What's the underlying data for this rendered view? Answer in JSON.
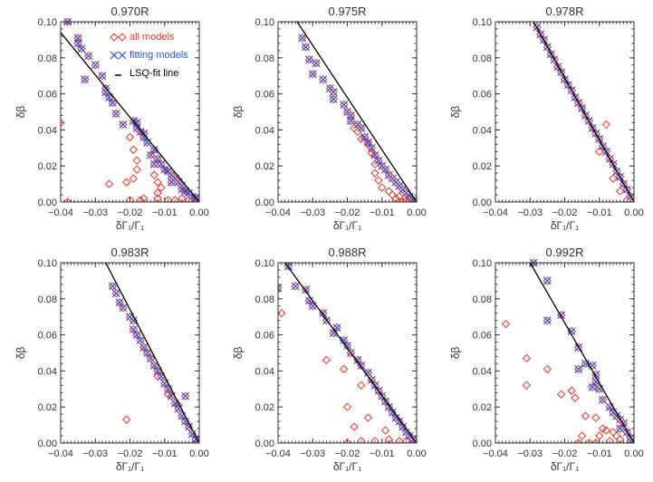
{
  "colors": {
    "all_models": "#ee3322",
    "fitting_models": "#2255ee",
    "fit_line": "#000000"
  },
  "legend": {
    "all_models": "all models",
    "fitting_models": "fitting models",
    "fit_line": "LSQ-fit line",
    "placement": "top-right of first panel"
  },
  "chart_data": [
    {
      "type": "scatter",
      "title": "0.970R",
      "xlabel": "δΓ₁/Γ₁",
      "ylabel": "δβ",
      "xlim": [
        -0.04,
        0
      ],
      "ylim": [
        0,
        0.1
      ],
      "xticks": [
        "−0.04",
        "−0.03",
        "−0.02",
        "−0.01",
        "0.00"
      ],
      "yticks": [
        "0.00",
        "0.02",
        "0.04",
        "0.06",
        "0.08",
        "0.10"
      ],
      "fit_line": [
        [
          -0.04,
          0.094
        ],
        [
          0,
          0
        ]
      ],
      "fitting": [
        [
          -0.038,
          0.1
        ],
        [
          -0.035,
          0.091
        ],
        [
          -0.035,
          0.088
        ],
        [
          -0.034,
          0.085
        ],
        [
          -0.032,
          0.081
        ],
        [
          -0.033,
          0.068
        ],
        [
          -0.03,
          0.076
        ],
        [
          -0.028,
          0.07
        ],
        [
          -0.027,
          0.063
        ],
        [
          -0.027,
          0.061
        ],
        [
          -0.026,
          0.058
        ],
        [
          -0.025,
          0.055
        ],
        [
          -0.024,
          0.049
        ],
        [
          -0.022,
          0.043
        ],
        [
          -0.019,
          0.045
        ],
        [
          -0.018,
          0.044
        ],
        [
          -0.018,
          0.041
        ],
        [
          -0.017,
          0.039
        ],
        [
          -0.016,
          0.038
        ],
        [
          -0.016,
          0.036
        ],
        [
          -0.015,
          0.033
        ],
        [
          -0.013,
          0.029
        ],
        [
          -0.014,
          0.026
        ],
        [
          -0.012,
          0.024
        ],
        [
          -0.013,
          0.021
        ],
        [
          -0.011,
          0.021
        ],
        [
          -0.01,
          0.018
        ],
        [
          -0.009,
          0.017
        ],
        [
          -0.008,
          0.015
        ],
        [
          -0.007,
          0.013
        ],
        [
          -0.008,
          0.011
        ],
        [
          -0.006,
          0.011
        ],
        [
          -0.005,
          0.009
        ],
        [
          -0.005,
          0.007
        ],
        [
          -0.004,
          0.006
        ],
        [
          -0.003,
          0.005
        ],
        [
          -0.002,
          0.003
        ],
        [
          -0.001,
          0.002
        ]
      ],
      "others": [
        [
          -0.04,
          0.044
        ],
        [
          -0.026,
          0.01
        ],
        [
          -0.021,
          0.011
        ],
        [
          -0.02,
          0.036
        ],
        [
          -0.019,
          0.029
        ],
        [
          -0.018,
          0.023
        ],
        [
          -0.018,
          0.018
        ],
        [
          -0.019,
          0.013
        ],
        [
          -0.013,
          0.015
        ],
        [
          -0.012,
          0.011
        ],
        [
          -0.011,
          0.008
        ],
        [
          -0.012,
          0.005
        ],
        [
          -0.02,
          0.001
        ],
        [
          -0.017,
          0.001
        ],
        [
          -0.016,
          0.002
        ],
        [
          -0.012,
          0.002
        ],
        [
          -0.009,
          0.001
        ],
        [
          -0.007,
          0.001
        ],
        [
          -0.005,
          0.002
        ],
        [
          -0.003,
          0.001
        ],
        [
          -0.001,
          0.001
        ],
        [
          -0.038,
          0.0
        ]
      ]
    },
    {
      "type": "scatter",
      "title": "0.975R",
      "xlabel": "δΓ₁/Γ₁",
      "ylabel": "δβ",
      "xlim": [
        -0.04,
        0
      ],
      "ylim": [
        0,
        0.1
      ],
      "xticks": [
        "−0.04",
        "−0.03",
        "−0.02",
        "−0.01",
        "0.00"
      ],
      "yticks": [
        "0.00",
        "0.02",
        "0.04",
        "0.06",
        "0.08",
        "0.10"
      ],
      "fit_line": [
        [
          -0.0345,
          0.1
        ],
        [
          0,
          0
        ]
      ],
      "fitting": [
        [
          -0.033,
          0.091
        ],
        [
          -0.032,
          0.086
        ],
        [
          -0.031,
          0.079
        ],
        [
          -0.029,
          0.077
        ],
        [
          -0.03,
          0.071
        ],
        [
          -0.027,
          0.068
        ],
        [
          -0.025,
          0.063
        ],
        [
          -0.024,
          0.061
        ],
        [
          -0.024,
          0.057
        ],
        [
          -0.021,
          0.054
        ],
        [
          -0.02,
          0.05
        ],
        [
          -0.019,
          0.048
        ],
        [
          -0.019,
          0.045
        ],
        [
          -0.017,
          0.043
        ],
        [
          -0.016,
          0.041
        ],
        [
          -0.015,
          0.036
        ],
        [
          -0.014,
          0.033
        ],
        [
          -0.013,
          0.03
        ],
        [
          -0.012,
          0.026
        ],
        [
          -0.011,
          0.023
        ],
        [
          -0.01,
          0.02
        ],
        [
          -0.009,
          0.018
        ],
        [
          -0.008,
          0.015
        ],
        [
          -0.007,
          0.013
        ],
        [
          -0.006,
          0.011
        ],
        [
          -0.005,
          0.009
        ],
        [
          -0.004,
          0.007
        ],
        [
          -0.003,
          0.005
        ],
        [
          -0.002,
          0.003
        ],
        [
          -0.001,
          0.001
        ]
      ],
      "others": [
        [
          -0.018,
          0.041
        ],
        [
          -0.017,
          0.039
        ],
        [
          -0.016,
          0.035
        ],
        [
          -0.014,
          0.032
        ],
        [
          -0.013,
          0.027
        ],
        [
          -0.012,
          0.021
        ],
        [
          -0.012,
          0.016
        ],
        [
          -0.011,
          0.012
        ],
        [
          -0.01,
          0.008
        ],
        [
          -0.008,
          0.006
        ],
        [
          -0.007,
          0.004
        ],
        [
          -0.006,
          0.002
        ],
        [
          -0.005,
          0.003
        ],
        [
          -0.003,
          0.001
        ],
        [
          -0.002,
          0.002
        ],
        [
          -0.004,
          0.0
        ]
      ]
    },
    {
      "type": "scatter",
      "title": "0.978R",
      "xlabel": "δΓ₁/Γ₁",
      "ylabel": "δβ",
      "xlim": [
        -0.04,
        0
      ],
      "ylim": [
        0,
        0.1
      ],
      "xticks": [
        "−0.04",
        "−0.03",
        "−0.02",
        "−0.01",
        "0.00"
      ],
      "yticks": [
        "0.00",
        "0.02",
        "0.04",
        "0.06",
        "0.08",
        "0.10"
      ],
      "fit_line": [
        [
          -0.029,
          0.1
        ],
        [
          0,
          0
        ]
      ],
      "fitting": [
        [
          -0.028,
          0.097
        ],
        [
          -0.027,
          0.093
        ],
        [
          -0.026,
          0.09
        ],
        [
          -0.025,
          0.086
        ],
        [
          -0.024,
          0.082
        ],
        [
          -0.023,
          0.079
        ],
        [
          -0.022,
          0.075
        ],
        [
          -0.021,
          0.072
        ],
        [
          -0.02,
          0.068
        ],
        [
          -0.019,
          0.065
        ],
        [
          -0.018,
          0.062
        ],
        [
          -0.017,
          0.058
        ],
        [
          -0.016,
          0.055
        ],
        [
          -0.015,
          0.052
        ],
        [
          -0.014,
          0.048
        ],
        [
          -0.013,
          0.045
        ],
        [
          -0.012,
          0.041
        ],
        [
          -0.011,
          0.038
        ],
        [
          -0.01,
          0.035
        ],
        [
          -0.009,
          0.031
        ],
        [
          -0.008,
          0.028
        ],
        [
          -0.007,
          0.024
        ],
        [
          -0.006,
          0.021
        ],
        [
          -0.005,
          0.017
        ],
        [
          -0.004,
          0.014
        ],
        [
          -0.003,
          0.01
        ],
        [
          -0.002,
          0.007
        ],
        [
          -0.001,
          0.003
        ]
      ],
      "others": [
        [
          -0.008,
          0.043
        ],
        [
          -0.01,
          0.028
        ],
        [
          -0.006,
          0.013
        ],
        [
          -0.004,
          0.006
        ],
        [
          -0.002,
          0.001
        ]
      ]
    },
    {
      "type": "scatter",
      "title": "0.983R",
      "xlabel": "δΓ₁/Γ₁",
      "ylabel": "δβ",
      "xlim": [
        -0.04,
        0
      ],
      "ylim": [
        0,
        0.1
      ],
      "xticks": [
        "−0.04",
        "−0.03",
        "−0.02",
        "−0.01",
        "0.00"
      ],
      "yticks": [
        "0.00",
        "0.02",
        "0.04",
        "0.06",
        "0.08",
        "0.10"
      ],
      "fit_line": [
        [
          -0.027,
          0.1
        ],
        [
          0,
          0
        ]
      ],
      "fitting": [
        [
          -0.025,
          0.087
        ],
        [
          -0.024,
          0.083
        ],
        [
          -0.023,
          0.078
        ],
        [
          -0.022,
          0.075
        ],
        [
          -0.02,
          0.07
        ],
        [
          -0.019,
          0.068
        ],
        [
          -0.019,
          0.063
        ],
        [
          -0.018,
          0.06
        ],
        [
          -0.017,
          0.057
        ],
        [
          -0.016,
          0.053
        ],
        [
          -0.015,
          0.05
        ],
        [
          -0.014,
          0.047
        ],
        [
          -0.013,
          0.043
        ],
        [
          -0.012,
          0.04
        ],
        [
          -0.011,
          0.037
        ],
        [
          -0.01,
          0.033
        ],
        [
          -0.009,
          0.03
        ],
        [
          -0.008,
          0.026
        ],
        [
          -0.004,
          0.026
        ],
        [
          -0.007,
          0.022
        ],
        [
          -0.006,
          0.019
        ],
        [
          -0.005,
          0.015
        ],
        [
          -0.004,
          0.012
        ],
        [
          -0.003,
          0.009
        ],
        [
          -0.002,
          0.005
        ],
        [
          -0.001,
          0.002
        ]
      ],
      "others": [
        [
          -0.021,
          0.013
        ],
        [
          -0.012,
          0.037
        ],
        [
          -0.009,
          0.027
        ],
        [
          -0.006,
          0.021
        ]
      ]
    },
    {
      "type": "scatter",
      "title": "0.988R",
      "xlabel": "δΓ₁/Γ₁",
      "ylabel": "δβ",
      "xlim": [
        -0.04,
        0
      ],
      "ylim": [
        0,
        0.1
      ],
      "xticks": [
        "−0.04",
        "−0.03",
        "−0.02",
        "−0.01",
        "0.00"
      ],
      "yticks": [
        "0.00",
        "0.02",
        "0.04",
        "0.06",
        "0.08",
        "0.10"
      ],
      "fit_line": [
        [
          -0.038,
          0.1
        ],
        [
          0,
          0
        ]
      ],
      "fitting": [
        [
          -0.037,
          0.098
        ],
        [
          -0.04,
          0.086
        ],
        [
          -0.035,
          0.087
        ],
        [
          -0.032,
          0.085
        ],
        [
          -0.031,
          0.079
        ],
        [
          -0.03,
          0.076
        ],
        [
          -0.027,
          0.072
        ],
        [
          -0.026,
          0.068
        ],
        [
          -0.023,
          0.064
        ],
        [
          -0.024,
          0.061
        ],
        [
          -0.021,
          0.057
        ],
        [
          -0.02,
          0.054
        ],
        [
          -0.019,
          0.05
        ],
        [
          -0.017,
          0.046
        ],
        [
          -0.016,
          0.043
        ],
        [
          -0.014,
          0.039
        ],
        [
          -0.013,
          0.035
        ],
        [
          -0.012,
          0.032
        ],
        [
          -0.011,
          0.029
        ],
        [
          -0.01,
          0.026
        ],
        [
          -0.009,
          0.023
        ],
        [
          -0.008,
          0.02
        ],
        [
          -0.007,
          0.017
        ],
        [
          -0.006,
          0.014
        ],
        [
          -0.005,
          0.012
        ],
        [
          -0.004,
          0.009
        ],
        [
          -0.003,
          0.006
        ],
        [
          -0.002,
          0.004
        ],
        [
          -0.001,
          0.002
        ]
      ],
      "others": [
        [
          -0.039,
          0.072
        ],
        [
          -0.026,
          0.046
        ],
        [
          -0.021,
          0.041
        ],
        [
          -0.016,
          0.032
        ],
        [
          -0.02,
          0.02
        ],
        [
          -0.018,
          0.009
        ],
        [
          -0.014,
          0.014
        ],
        [
          -0.009,
          0.007
        ],
        [
          -0.02,
          0.0
        ],
        [
          -0.016,
          0.001
        ],
        [
          -0.012,
          0.001
        ],
        [
          -0.008,
          0.002
        ],
        [
          -0.005,
          0.001
        ],
        [
          -0.003,
          0.001
        ]
      ]
    },
    {
      "type": "scatter",
      "title": "0.992R",
      "xlabel": "δΓ₁/Γ₁",
      "ylabel": "δβ",
      "xlim": [
        -0.04,
        0
      ],
      "ylim": [
        0,
        0.1
      ],
      "xticks": [
        "−0.04",
        "−0.03",
        "−0.02",
        "−0.01",
        "0.00"
      ],
      "yticks": [
        "0.00",
        "0.02",
        "0.04",
        "0.06",
        "0.08",
        "0.10"
      ],
      "fit_line": [
        [
          -0.03,
          0.1
        ],
        [
          0,
          0
        ]
      ],
      "fitting": [
        [
          -0.029,
          0.1
        ],
        [
          -0.025,
          0.09
        ],
        [
          -0.025,
          0.068
        ],
        [
          -0.021,
          0.071
        ],
        [
          -0.018,
          0.062
        ],
        [
          -0.016,
          0.053
        ],
        [
          -0.016,
          0.041
        ],
        [
          -0.014,
          0.044
        ],
        [
          -0.012,
          0.043
        ],
        [
          -0.011,
          0.038
        ],
        [
          -0.011,
          0.034
        ],
        [
          -0.012,
          0.031
        ],
        [
          -0.01,
          0.03
        ],
        [
          -0.009,
          0.024
        ],
        [
          -0.007,
          0.02
        ],
        [
          -0.006,
          0.017
        ],
        [
          -0.005,
          0.015
        ],
        [
          -0.004,
          0.013
        ],
        [
          -0.003,
          0.011
        ],
        [
          -0.004,
          0.008
        ],
        [
          -0.002,
          0.006
        ],
        [
          -0.001,
          0.003
        ],
        [
          -0.001,
          0.001
        ]
      ],
      "others": [
        [
          -0.037,
          0.066
        ],
        [
          -0.031,
          0.047
        ],
        [
          -0.031,
          0.032
        ],
        [
          -0.025,
          0.041
        ],
        [
          -0.021,
          0.027
        ],
        [
          -0.018,
          0.029
        ],
        [
          -0.017,
          0.025
        ],
        [
          -0.014,
          0.015
        ],
        [
          -0.011,
          0.014
        ],
        [
          -0.015,
          0.004
        ],
        [
          -0.009,
          0.008
        ],
        [
          -0.008,
          0.007
        ],
        [
          -0.01,
          0.004
        ],
        [
          -0.006,
          0.006
        ],
        [
          -0.005,
          0.004
        ],
        [
          -0.007,
          0.001
        ],
        [
          -0.004,
          0.002
        ],
        [
          -0.016,
          0.0
        ],
        [
          -0.013,
          0.0
        ],
        [
          -0.011,
          0.0
        ]
      ]
    }
  ]
}
